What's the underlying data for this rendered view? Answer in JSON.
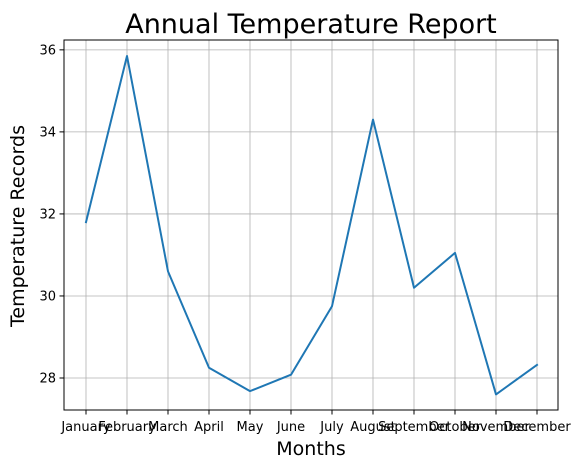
{
  "chart_data": {
    "type": "line",
    "title": "Annual Temperature Report",
    "xlabel": "Months",
    "ylabel": "Temperature Records",
    "categories": [
      "January",
      "February",
      "March",
      "April",
      "May",
      "June",
      "July",
      "August",
      "September",
      "October",
      "November",
      "December"
    ],
    "series": [
      {
        "values": [
          31.8,
          35.85,
          30.6,
          28.25,
          27.68,
          28.08,
          29.75,
          34.3,
          30.2,
          31.05,
          27.6,
          28.32
        ],
        "color": "#1f77b4"
      }
    ],
    "ylim": [
      27.22,
      36.24
    ],
    "yticks": [
      28,
      30,
      32,
      34,
      36
    ],
    "grid": true,
    "colors": {
      "line": "#1f77b4",
      "grid": "#b0b0b0",
      "axes": "#000000"
    }
  }
}
